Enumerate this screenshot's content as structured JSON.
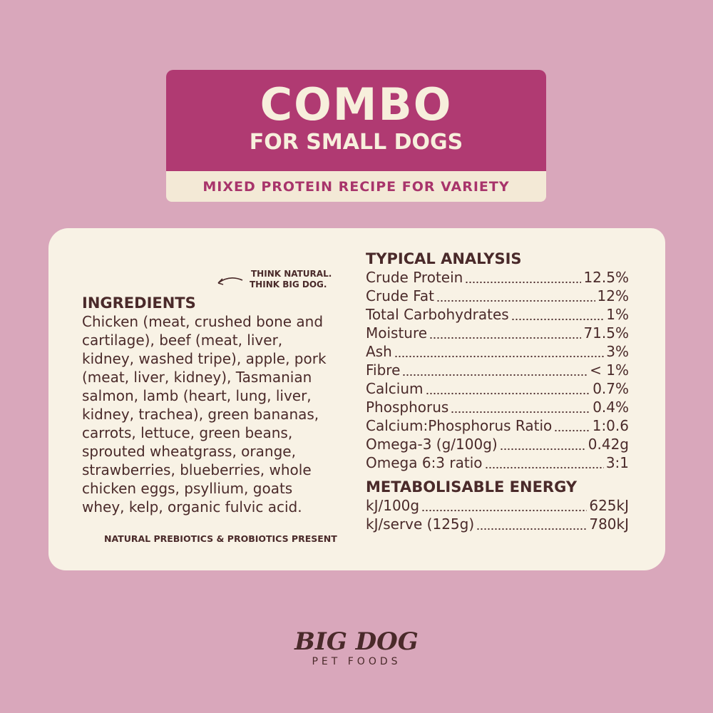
{
  "header": {
    "title": "COMBO",
    "subtitle": "FOR SMALL DOGS",
    "banner": "MIXED PROTEIN RECIPE FOR VARIETY"
  },
  "tagline": [
    "THINK NATURAL.",
    "THINK BIG DOG."
  ],
  "ingredients": {
    "heading": "INGREDIENTS",
    "lines": [
      "Chicken (meat, crushed bone and",
      "cartilage), beef (meat, liver,",
      "kidney, washed tripe), apple, pork",
      "(meat, liver, kidney), Tasmanian",
      "salmon, lamb (heart, lung, liver,",
      "kidney, trachea), green bananas,",
      "carrots, lettuce, green beans,",
      "sprouted wheatgrass, orange,",
      "strawberries, blueberries, whole",
      "chicken eggs, psyllium, goats",
      "whey, kelp, organic fulvic acid."
    ],
    "note": "NATURAL PREBIOTICS & PROBIOTICS PRESENT"
  },
  "analysis": {
    "heading": "TYPICAL ANALYSIS",
    "rows": [
      [
        "Crude Protein",
        "12.5%"
      ],
      [
        "Crude Fat",
        "12%"
      ],
      [
        "Total Carbohydrates",
        "1%"
      ],
      [
        "Moisture",
        "71.5%"
      ],
      [
        "Ash",
        "3%"
      ],
      [
        "Fibre",
        "< 1%"
      ],
      [
        "Calcium",
        "0.7%"
      ],
      [
        "Phosphorus",
        "0.4%"
      ],
      [
        "Calcium:Phosphorus Ratio",
        "1:0.6"
      ],
      [
        "Omega-3 (g/100g)",
        "0.42g"
      ],
      [
        "Omega 6:3 ratio",
        "3:1"
      ]
    ]
  },
  "energy": {
    "heading": "METABOLISABLE ENERGY",
    "rows": [
      [
        "kJ/100g",
        "625kJ"
      ],
      [
        "kJ/serve (125g)",
        "780kJ"
      ]
    ]
  },
  "logo": {
    "brand": "BIG DOG",
    "sub": "PET FOODS"
  }
}
